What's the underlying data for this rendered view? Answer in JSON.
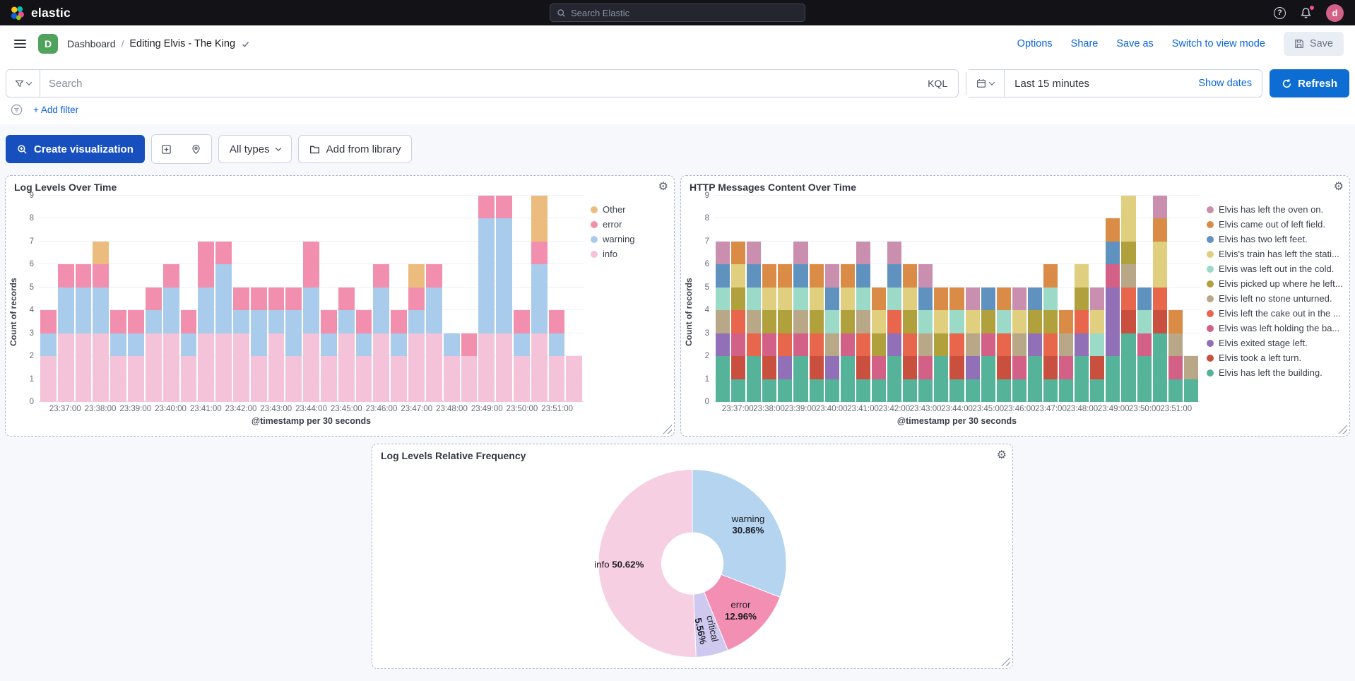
{
  "header": {
    "brand": "elastic",
    "search_placeholder": "Search Elastic",
    "user_initial": "d"
  },
  "nav": {
    "space_initial": "D",
    "breadcrumb": {
      "root": "Dashboard",
      "separator": "/",
      "current": "Editing Elvis - The King"
    },
    "options": "Options",
    "share": "Share",
    "save_as": "Save as",
    "switch_mode": "Switch to view mode",
    "save": "Save"
  },
  "query_bar": {
    "search_placeholder": "Search",
    "kql": "KQL",
    "time_range": "Last 15 minutes",
    "show_dates": "Show dates",
    "refresh": "Refresh",
    "add_filter": "+ Add filter"
  },
  "toolbar": {
    "create_visualization": "Create visualization",
    "all_types": "All types",
    "add_from_library": "Add from library"
  },
  "colors": {
    "primary_button": "#1750BE",
    "refresh_button": "#0E6DD2",
    "link_blue": "#0B64DD",
    "space_avatar": "#4FA35D",
    "user_avatar": "#D36086",
    "notification_dot": "#F04E98",
    "panel_border": "#A7B6CF"
  },
  "chart_data": [
    {
      "type": "bar",
      "title": "Log Levels Over Time",
      "ylabel": "Count of records",
      "xlabel": "@timestamp per 30 seconds",
      "ylim": [
        0,
        9
      ],
      "grid": true,
      "legend_position": "right",
      "categories": [
        "23:36:30",
        "23:37:00",
        "23:37:30",
        "23:38:00",
        "23:38:30",
        "23:39:00",
        "23:39:30",
        "23:40:00",
        "23:40:30",
        "23:41:00",
        "23:41:30",
        "23:42:00",
        "23:42:30",
        "23:43:00",
        "23:43:30",
        "23:44:00",
        "23:44:30",
        "23:45:00",
        "23:45:30",
        "23:46:00",
        "23:46:30",
        "23:47:00",
        "23:47:30",
        "23:48:00",
        "23:48:30",
        "23:49:00",
        "23:49:30",
        "23:50:00",
        "23:50:30",
        "23:51:00",
        "23:51:30"
      ],
      "x_ticks": [
        {
          "index": 1,
          "label": "23:37:00"
        },
        {
          "index": 3,
          "label": "23:38:00"
        },
        {
          "index": 5,
          "label": "23:39:00"
        },
        {
          "index": 7,
          "label": "23:40:00"
        },
        {
          "index": 9,
          "label": "23:41:00"
        },
        {
          "index": 11,
          "label": "23:42:00"
        },
        {
          "index": 13,
          "label": "23:43:00"
        },
        {
          "index": 15,
          "label": "23:44:00"
        },
        {
          "index": 17,
          "label": "23:45:00"
        },
        {
          "index": 19,
          "label": "23:46:00"
        },
        {
          "index": 21,
          "label": "23:47:00"
        },
        {
          "index": 23,
          "label": "23:48:00"
        },
        {
          "index": 25,
          "label": "23:49:00"
        },
        {
          "index": 27,
          "label": "23:50:00"
        },
        {
          "index": 29,
          "label": "23:51:00"
        }
      ],
      "series": [
        {
          "name": "info",
          "color": "#F4C2D9",
          "values": [
            2,
            3,
            3,
            3,
            2,
            2,
            3,
            3,
            2,
            3,
            3,
            3,
            2,
            3,
            2,
            3,
            2,
            3,
            2,
            3,
            2,
            3,
            3,
            2,
            2,
            3,
            3,
            2,
            3,
            2,
            2
          ]
        },
        {
          "name": "warning",
          "color": "#A9CBEC",
          "values": [
            1,
            2,
            2,
            2,
            1,
            1,
            1,
            2,
            1,
            2,
            3,
            1,
            2,
            1,
            2,
            2,
            1,
            1,
            1,
            2,
            1,
            1,
            2,
            1,
            0,
            5,
            5,
            1,
            3,
            1,
            0
          ]
        },
        {
          "name": "error",
          "color": "#F28FAE",
          "values": [
            1,
            1,
            1,
            1,
            1,
            1,
            1,
            1,
            1,
            2,
            1,
            1,
            1,
            1,
            1,
            2,
            1,
            1,
            1,
            1,
            1,
            1,
            1,
            0,
            1,
            1,
            1,
            1,
            1,
            1,
            0
          ]
        },
        {
          "name": "Other",
          "color": "#EBBC7E",
          "values": [
            0,
            0,
            0,
            1,
            0,
            0,
            0,
            0,
            0,
            0,
            0,
            0,
            0,
            0,
            0,
            0,
            0,
            0,
            0,
            0,
            0,
            1,
            0,
            0,
            0,
            0,
            0,
            0,
            2,
            0,
            0
          ]
        }
      ],
      "legend": [
        {
          "label": "Other",
          "color": "#EBBC7E"
        },
        {
          "label": "error",
          "color": "#F28FAE"
        },
        {
          "label": "warning",
          "color": "#A9CBEC"
        },
        {
          "label": "info",
          "color": "#F4C2D9"
        }
      ]
    },
    {
      "type": "bar",
      "title": "HTTP Messages Content Over Time",
      "ylabel": "Count of records",
      "xlabel": "@timestamp per 30 seconds",
      "ylim": [
        0,
        9
      ],
      "grid": true,
      "legend_position": "right",
      "categories": [
        "23:36:30",
        "23:37:00",
        "23:37:30",
        "23:38:00",
        "23:38:30",
        "23:39:00",
        "23:39:30",
        "23:40:00",
        "23:40:30",
        "23:41:00",
        "23:41:30",
        "23:42:00",
        "23:42:30",
        "23:43:00",
        "23:43:30",
        "23:44:00",
        "23:44:30",
        "23:45:00",
        "23:45:30",
        "23:46:00",
        "23:46:30",
        "23:47:00",
        "23:47:30",
        "23:48:00",
        "23:48:30",
        "23:49:00",
        "23:49:30",
        "23:50:00",
        "23:50:30",
        "23:51:00",
        "23:51:30"
      ],
      "x_ticks": [
        {
          "index": 1,
          "label": "23:37:00"
        },
        {
          "index": 3,
          "label": "23:38:00"
        },
        {
          "index": 5,
          "label": "23:39:00"
        },
        {
          "index": 7,
          "label": "23:40:00"
        },
        {
          "index": 9,
          "label": "23:41:00"
        },
        {
          "index": 11,
          "label": "23:42:00"
        },
        {
          "index": 13,
          "label": "23:43:00"
        },
        {
          "index": 15,
          "label": "23:44:00"
        },
        {
          "index": 17,
          "label": "23:45:00"
        },
        {
          "index": 19,
          "label": "23:46:00"
        },
        {
          "index": 21,
          "label": "23:47:00"
        },
        {
          "index": 23,
          "label": "23:48:00"
        },
        {
          "index": 25,
          "label": "23:49:00"
        },
        {
          "index": 27,
          "label": "23:50:00"
        },
        {
          "index": 29,
          "label": "23:51:00"
        }
      ],
      "series": [
        {
          "name": "Elvis has left the building.",
          "color": "#54B399",
          "values": [
            2,
            1,
            2,
            1,
            1,
            2,
            1,
            1,
            2,
            1,
            1,
            2,
            1,
            1,
            2,
            1,
            1,
            2,
            1,
            1,
            2,
            1,
            1,
            2,
            1,
            2,
            3,
            2,
            3,
            1,
            1
          ]
        },
        {
          "name": "Elvis took a left turn.",
          "color": "#C9503F",
          "values": [
            0,
            1,
            0,
            1,
            0,
            0,
            1,
            0,
            0,
            1,
            0,
            0,
            1,
            0,
            0,
            1,
            0,
            0,
            1,
            0,
            0,
            1,
            0,
            0,
            1,
            0,
            1,
            0,
            1,
            0,
            0
          ]
        },
        {
          "name": "Elvis exited stage left.",
          "color": "#9170B8",
          "values": [
            1,
            0,
            0,
            0,
            1,
            0,
            0,
            1,
            0,
            0,
            0,
            1,
            0,
            0,
            0,
            0,
            1,
            0,
            0,
            0,
            1,
            0,
            0,
            1,
            0,
            3,
            0,
            0,
            0,
            0,
            0
          ]
        },
        {
          "name": "Elvis was left holding the ba...",
          "color": "#D36086",
          "values": [
            0,
            1,
            0,
            1,
            0,
            1,
            0,
            0,
            1,
            0,
            1,
            0,
            0,
            1,
            0,
            0,
            0,
            1,
            0,
            1,
            0,
            0,
            1,
            0,
            0,
            1,
            0,
            1,
            0,
            1,
            0
          ]
        },
        {
          "name": "Elvis left the cake out in the ...",
          "color": "#E7664C",
          "values": [
            0,
            1,
            1,
            0,
            1,
            0,
            1,
            0,
            0,
            1,
            0,
            1,
            1,
            0,
            0,
            1,
            0,
            0,
            1,
            0,
            0,
            1,
            0,
            1,
            0,
            0,
            1,
            0,
            1,
            0,
            0
          ]
        },
        {
          "name": "Elvis left no stone unturned.",
          "color": "#B9A888",
          "values": [
            1,
            0,
            1,
            0,
            0,
            1,
            0,
            1,
            0,
            1,
            0,
            0,
            0,
            1,
            0,
            0,
            1,
            0,
            0,
            1,
            0,
            0,
            1,
            0,
            0,
            0,
            1,
            0,
            0,
            1,
            1
          ]
        },
        {
          "name": "Elvis picked up where he left...",
          "color": "#B0A13C",
          "values": [
            0,
            1,
            0,
            1,
            1,
            0,
            1,
            0,
            1,
            0,
            1,
            0,
            1,
            0,
            1,
            0,
            0,
            1,
            0,
            0,
            1,
            1,
            0,
            1,
            0,
            0,
            1,
            0,
            0,
            0,
            0
          ]
        },
        {
          "name": "Elvis was left out in the cold.",
          "color": "#9CDAC8",
          "values": [
            1,
            0,
            1,
            0,
            0,
            1,
            0,
            1,
            0,
            1,
            0,
            1,
            0,
            1,
            0,
            1,
            0,
            0,
            1,
            0,
            0,
            1,
            0,
            0,
            1,
            0,
            0,
            1,
            0,
            0,
            0
          ]
        },
        {
          "name": "Elvis's train has left the stati...",
          "color": "#E0CF7E",
          "values": [
            0,
            1,
            0,
            1,
            1,
            0,
            1,
            0,
            1,
            0,
            1,
            0,
            1,
            0,
            1,
            0,
            1,
            0,
            0,
            1,
            0,
            0,
            0,
            1,
            1,
            0,
            2,
            0,
            2,
            0,
            0
          ]
        },
        {
          "name": "Elvis has two left feet.",
          "color": "#6092C0",
          "values": [
            1,
            0,
            1,
            0,
            0,
            1,
            0,
            1,
            0,
            1,
            0,
            1,
            0,
            1,
            0,
            0,
            0,
            1,
            0,
            0,
            1,
            0,
            0,
            0,
            0,
            1,
            0,
            1,
            0,
            0,
            0
          ]
        },
        {
          "name": "Elvis came out of left field.",
          "color": "#DA8B45",
          "values": [
            0,
            1,
            0,
            1,
            1,
            0,
            1,
            0,
            1,
            0,
            1,
            0,
            1,
            0,
            1,
            1,
            0,
            0,
            1,
            0,
            0,
            1,
            1,
            0,
            0,
            1,
            0,
            0,
            1,
            1,
            0
          ]
        },
        {
          "name": "Elvis has left the oven on.",
          "color": "#CA8EAE",
          "values": [
            1,
            0,
            1,
            0,
            0,
            1,
            0,
            1,
            0,
            1,
            0,
            1,
            0,
            1,
            0,
            0,
            1,
            0,
            0,
            1,
            0,
            0,
            0,
            0,
            1,
            0,
            0,
            0,
            1,
            0,
            0
          ]
        }
      ],
      "legend": [
        {
          "label": "Elvis has left the oven on.",
          "color": "#CA8EAE"
        },
        {
          "label": "Elvis came out of left field.",
          "color": "#DA8B45"
        },
        {
          "label": "Elvis has two left feet.",
          "color": "#6092C0"
        },
        {
          "label": "Elvis's train has left the stati...",
          "color": "#E0CF7E"
        },
        {
          "label": "Elvis was left out in the cold.",
          "color": "#9CDAC8"
        },
        {
          "label": "Elvis picked up where he left...",
          "color": "#B0A13C"
        },
        {
          "label": "Elvis left no stone unturned.",
          "color": "#B9A888"
        },
        {
          "label": "Elvis left the cake out in the ...",
          "color": "#E7664C"
        },
        {
          "label": "Elvis was left holding the ba...",
          "color": "#D36086"
        },
        {
          "label": "Elvis exited stage left.",
          "color": "#9170B8"
        },
        {
          "label": "Elvis took a left turn.",
          "color": "#C9503F"
        },
        {
          "label": "Elvis has left the building.",
          "color": "#54B399"
        }
      ]
    },
    {
      "type": "pie",
      "title": "Log Levels Relative Frequency",
      "donut": true,
      "start_angle": "top",
      "direction": "clockwise",
      "slices": [
        {
          "name": "warning",
          "pct": 30.86,
          "color": "#B4D4F0",
          "label_style": "stacked"
        },
        {
          "name": "error",
          "pct": 12.96,
          "color": "#F48FB4",
          "label_style": "stacked"
        },
        {
          "name": "critical",
          "pct": 5.56,
          "color": "#CFC9F0",
          "label_style": "rotated"
        },
        {
          "name": "info",
          "pct": 50.62,
          "color": "#F7CFE3",
          "label_style": "inline"
        }
      ]
    }
  ]
}
